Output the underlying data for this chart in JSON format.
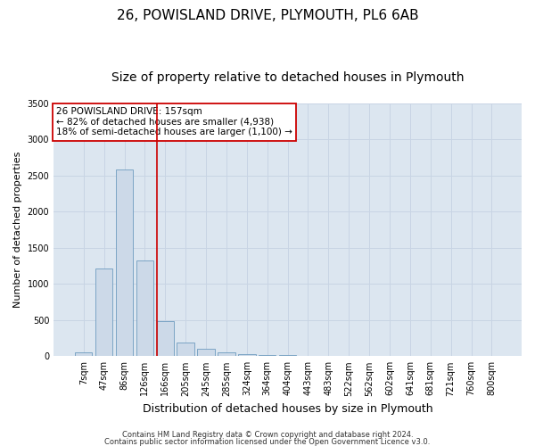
{
  "title_line1": "26, POWISLAND DRIVE, PLYMOUTH, PL6 6AB",
  "title_line2": "Size of property relative to detached houses in Plymouth",
  "xlabel": "Distribution of detached houses by size in Plymouth",
  "ylabel": "Number of detached properties",
  "categories": [
    "7sqm",
    "47sqm",
    "86sqm",
    "126sqm",
    "166sqm",
    "205sqm",
    "245sqm",
    "285sqm",
    "324sqm",
    "364sqm",
    "404sqm",
    "443sqm",
    "483sqm",
    "522sqm",
    "562sqm",
    "602sqm",
    "641sqm",
    "681sqm",
    "721sqm",
    "760sqm",
    "800sqm"
  ],
  "values": [
    50,
    1220,
    2580,
    1330,
    480,
    190,
    100,
    50,
    25,
    15,
    10,
    5,
    3,
    2,
    1,
    1,
    0,
    0,
    0,
    0,
    0
  ],
  "bar_color": "#ccd9e8",
  "bar_edge_color": "#6e9bbf",
  "vline_color": "#cc0000",
  "annotation_text": "26 POWISLAND DRIVE: 157sqm\n← 82% of detached houses are smaller (4,938)\n18% of semi-detached houses are larger (1,100) →",
  "annotation_box_color": "#ffffff",
  "annotation_box_edge_color": "#cc0000",
  "ylim": [
    0,
    3500
  ],
  "yticks": [
    0,
    500,
    1000,
    1500,
    2000,
    2500,
    3000,
    3500
  ],
  "grid_color": "#c8d4e4",
  "bg_color": "#dce6f0",
  "footer_line1": "Contains HM Land Registry data © Crown copyright and database right 2024.",
  "footer_line2": "Contains public sector information licensed under the Open Government Licence v3.0.",
  "title_fontsize": 11,
  "subtitle_fontsize": 10,
  "tick_fontsize": 7,
  "ylabel_fontsize": 8,
  "xlabel_fontsize": 9,
  "annot_fontsize": 7.5,
  "footer_fontsize": 6
}
